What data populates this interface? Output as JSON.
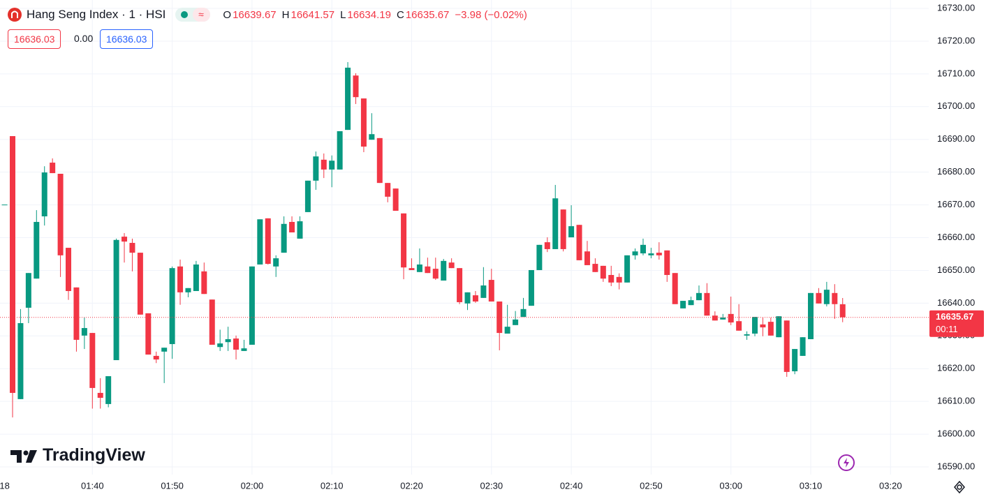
{
  "header": {
    "symbol": "Hang Seng Index · 1 · HSI",
    "open_letter": "O",
    "high_letter": "H",
    "low_letter": "L",
    "close_letter": "C",
    "change": "−3.98 (−0.02%)",
    "sell": "16636.03",
    "spread": "0.00",
    "buy": "16636.03",
    "brand": "TradingView"
  },
  "chart_data": {
    "type": "candlestick",
    "categories": [
      "18",
      null,
      null,
      null,
      null,
      null,
      null,
      null,
      null,
      null,
      null,
      "01:40",
      null,
      null,
      null,
      null,
      null,
      null,
      null,
      null,
      null,
      "01:50",
      null,
      null,
      null,
      null,
      null,
      null,
      null,
      null,
      null,
      "02:00",
      null,
      null,
      null,
      null,
      null,
      null,
      null,
      null,
      null,
      "02:10",
      null,
      null,
      null,
      null,
      null,
      null,
      null,
      null,
      null,
      "02:20",
      null,
      null,
      null,
      null,
      null,
      null,
      null,
      null,
      null,
      "02:30",
      null,
      null,
      null,
      null,
      null,
      null,
      null,
      null,
      null,
      "02:40",
      null,
      null,
      null,
      null,
      null,
      null,
      null,
      null,
      null,
      "02:50",
      null,
      null,
      null,
      null,
      null,
      null,
      null,
      null,
      null,
      "03:00",
      null,
      null,
      null,
      null,
      null,
      null,
      null,
      null,
      null,
      "03:10",
      null,
      null,
      null,
      null,
      null,
      null,
      null,
      null,
      null,
      "03:20"
    ],
    "open": [
      16670.1,
      16691.0,
      16610.7,
      16638.6,
      16647.5,
      16666.5,
      16682.9,
      16679.5,
      16656.9,
      16644.8,
      16630.1,
      16630.9,
      16612.6,
      16609.2,
      16622.6,
      16660.3,
      16658.4,
      16655.4,
      16636.9,
      16623.9,
      16625.2,
      16627.5,
      16651.2,
      16643.3,
      16643.7,
      16649.7,
      16641.1,
      16626.6,
      16628.1,
      16629.2,
      16625.4,
      16627.3,
      16651.8,
      16665.9,
      16651.2,
      16655.4,
      16664.8,
      16659.7,
      16667.8,
      16677.4,
      16683.8,
      16680.8,
      16680.8,
      16692.9,
      16709.5,
      16702.5,
      16689.9,
      16690.4,
      16676.7,
      16675.0,
      16667.4,
      16650.7,
      16649.5,
      16651.2,
      16650.5,
      16646.9,
      16652.4,
      16650.7,
      16639.9,
      16642.4,
      16641.6,
      16647.1,
      16640.5,
      16630.7,
      16633.3,
      16635.8,
      16639.2,
      16650.1,
      16658.6,
      16656.5,
      16668.6,
      16660.1,
      16663.9,
      16655.8,
      16652.0,
      16651.4,
      16648.6,
      16648.0,
      16646.3,
      16654.6,
      16655.2,
      16654.6,
      16655.4,
      16656.1,
      16649.2,
      16638.4,
      16639.4,
      16640.9,
      16643.1,
      16636.2,
      16635.0,
      16636.7,
      16634.5,
      16630.1,
      16630.7,
      16633.5,
      16634.3,
      16629.6,
      16634.7,
      16619.2,
      16623.9,
      16629.0,
      16643.1,
      16639.7,
      16643.1,
      16639.67,
      null,
      null,
      null,
      null,
      null,
      null
    ],
    "high": [
      16670.1,
      16691.0,
      16638.2,
      16649.2,
      16668.4,
      16681.8,
      16684.2,
      16679.5,
      16656.9,
      16644.8,
      16635.6,
      16630.9,
      16617.1,
      16617.7,
      16659.7,
      16661.4,
      16659.7,
      16655.4,
      16636.9,
      16625.2,
      16626.4,
      16651.2,
      16653.3,
      16644.6,
      16652.9,
      16652.4,
      16641.1,
      16631.9,
      16632.8,
      16630.1,
      16628.8,
      16651.2,
      16665.6,
      16665.9,
      16654.6,
      16666.5,
      16666.5,
      16666.5,
      16677.4,
      16686.3,
      16685.7,
      16685.1,
      16692.5,
      16713.6,
      16710.2,
      16702.5,
      16698.0,
      16690.4,
      16676.7,
      16675.0,
      16667.4,
      16653.7,
      16656.7,
      16653.9,
      16653.9,
      16653.5,
      16653.7,
      16650.7,
      16643.3,
      16643.7,
      16651.0,
      16650.5,
      16640.5,
      16639.5,
      16637.6,
      16641.6,
      16650.1,
      16657.8,
      16660.1,
      16676.1,
      16668.6,
      16669.9,
      16663.9,
      16659.0,
      16653.7,
      16651.4,
      16651.4,
      16649.1,
      16654.6,
      16656.7,
      16659.7,
      16656.9,
      16658.6,
      16656.1,
      16649.2,
      16640.7,
      16642.0,
      16645.4,
      16646.1,
      16637.5,
      16636.7,
      16642.0,
      16639.7,
      16631.4,
      16635.8,
      16635.6,
      16635.6,
      16636.0,
      16634.7,
      16626.0,
      16629.6,
      16643.1,
      16644.6,
      16646.5,
      16645.8,
      16641.57,
      null,
      null,
      null,
      null,
      null,
      null
    ],
    "low": [
      16670.1,
      16605.1,
      16610.7,
      16633.9,
      16647.5,
      16663.7,
      16679.7,
      16648.0,
      16641.0,
      16625.2,
      16626.0,
      16607.8,
      16607.8,
      16608.2,
      16622.6,
      16652.4,
      16649.7,
      16636.5,
      16624.3,
      16621.7,
      16615.6,
      16623.0,
      16639.5,
      16641.8,
      16643.7,
      16642.8,
      16627.3,
      16625.4,
      16625.4,
      16622.8,
      16625.4,
      16627.3,
      16651.8,
      16651.8,
      16648.0,
      16655.4,
      16661.6,
      16659.7,
      16667.8,
      16674.6,
      16678.2,
      16675.4,
      16680.8,
      16692.9,
      16700.8,
      16686.1,
      16689.9,
      16676.7,
      16670.8,
      16668.2,
      16647.3,
      16650.1,
      16649.5,
      16649.2,
      16647.1,
      16646.9,
      16650.7,
      16639.7,
      16637.9,
      16640.1,
      16641.6,
      16640.5,
      16625.6,
      16630.7,
      16633.3,
      16635.8,
      16639.2,
      16650.1,
      16655.6,
      16656.5,
      16655.8,
      16660.1,
      16653.1,
      16651.6,
      16649.5,
      16646.5,
      16645.2,
      16644.2,
      16646.3,
      16653.3,
      16654.6,
      16653.7,
      16653.3,
      16646.5,
      16639.7,
      16638.4,
      16639.4,
      16640.9,
      16636.2,
      16634.7,
      16635.0,
      16633.3,
      16631.6,
      16628.8,
      16629.9,
      16629.9,
      16630.1,
      16629.6,
      16617.5,
      16618.3,
      16623.9,
      16629.0,
      16639.9,
      16639.0,
      16635.2,
      16634.19,
      null,
      null,
      null,
      null,
      null,
      null
    ],
    "close": [
      16670.1,
      16612.6,
      16633.9,
      16649.2,
      16664.8,
      16679.9,
      16679.7,
      16654.6,
      16643.7,
      16628.8,
      16632.4,
      16614.1,
      16611.1,
      16617.7,
      16659.3,
      16658.8,
      16655.4,
      16636.5,
      16624.3,
      16622.8,
      16626.4,
      16650.7,
      16643.3,
      16644.6,
      16651.8,
      16642.8,
      16627.3,
      16627.7,
      16629.0,
      16625.8,
      16626.2,
      16651.2,
      16665.6,
      16652.0,
      16653.7,
      16664.2,
      16661.6,
      16665.0,
      16677.4,
      16684.8,
      16680.8,
      16683.5,
      16692.5,
      16711.9,
      16702.9,
      16687.8,
      16691.6,
      16676.7,
      16672.5,
      16668.2,
      16650.9,
      16650.1,
      16651.8,
      16649.2,
      16647.5,
      16652.9,
      16650.7,
      16640.3,
      16643.3,
      16640.5,
      16645.4,
      16640.5,
      16630.9,
      16632.8,
      16635.0,
      16638.2,
      16650.1,
      16657.8,
      16656.5,
      16672.0,
      16656.5,
      16663.5,
      16653.1,
      16651.6,
      16649.5,
      16647.5,
      16646.3,
      16646.3,
      16654.6,
      16655.8,
      16657.8,
      16655.2,
      16654.6,
      16648.6,
      16639.7,
      16640.7,
      16640.9,
      16643.1,
      16636.2,
      16634.7,
      16635.6,
      16634.1,
      16631.6,
      16630.5,
      16635.8,
      16632.6,
      16630.1,
      16636.0,
      16619.0,
      16626.0,
      16629.6,
      16643.1,
      16639.9,
      16644.1,
      16639.7,
      16635.67,
      null,
      null,
      null,
      null,
      null,
      null
    ],
    "ylim": [
      16587.66,
      16732.56
    ],
    "yticks": [
      {
        "value": 16590,
        "label": "16590.00"
      },
      {
        "value": 16600,
        "label": "16600.00"
      },
      {
        "value": 16610,
        "label": "16610.00"
      },
      {
        "value": 16620,
        "label": "16620.00"
      },
      {
        "value": 16630,
        "label": "16630.00"
      },
      {
        "value": 16640,
        "label": "16640.00"
      },
      {
        "value": 16650,
        "label": "16650.00"
      },
      {
        "value": 16660,
        "label": "16660.00"
      },
      {
        "value": 16670,
        "label": "16670.00"
      },
      {
        "value": 16680,
        "label": "16680.00"
      },
      {
        "value": 16690,
        "label": "16690.00"
      },
      {
        "value": 16700,
        "label": "16700.00"
      },
      {
        "value": 16710,
        "label": "16710.00"
      },
      {
        "value": 16720,
        "label": "16720.00"
      },
      {
        "value": 16730,
        "label": "16730.00"
      }
    ],
    "grid": true,
    "up_color": "#089981",
    "down_color": "#f23645",
    "countdown": "00:11"
  }
}
